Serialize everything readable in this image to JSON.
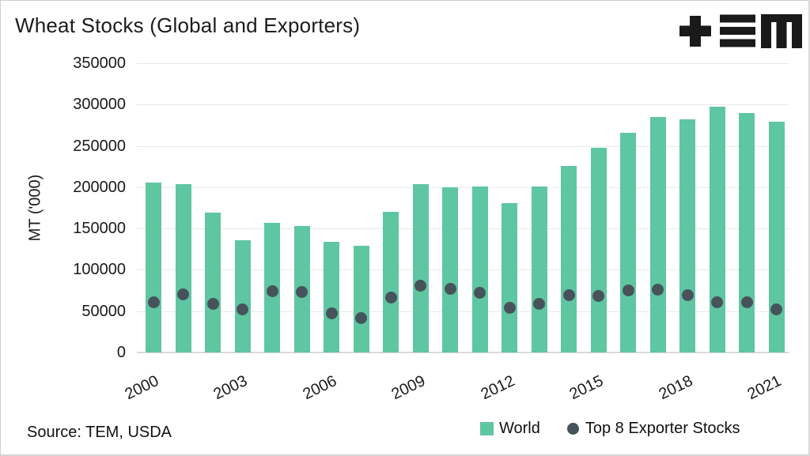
{
  "title": "Wheat Stocks (Global and Exporters)",
  "source_note": "Source: TEM, USDA",
  "logo_name": "tem-logo",
  "colors": {
    "bar": "#5fc6a2",
    "dot": "#47535a",
    "grid": "#e9e9e9",
    "baseline": "#dadada",
    "text": "#1a1a1a",
    "background": "#ffffff"
  },
  "chart_data": {
    "type": "bar",
    "title": "Wheat Stocks (Global and Exporters)",
    "xlabel": "",
    "ylabel": "MT ('000)",
    "ylim": [
      0,
      350000
    ],
    "ytick_step": 50000,
    "ytick_labels": [
      "0",
      "50000",
      "100000",
      "150000",
      "200000",
      "250000",
      "300000",
      "350000"
    ],
    "grid": true,
    "legend_position": "bottom-right",
    "categories": [
      2000,
      2001,
      2002,
      2003,
      2004,
      2005,
      2006,
      2007,
      2008,
      2009,
      2010,
      2011,
      2012,
      2013,
      2014,
      2015,
      2016,
      2017,
      2018,
      2019,
      2020,
      2021
    ],
    "xtick_labels": [
      "2000",
      "2003",
      "2006",
      "2009",
      "2012",
      "2015",
      "2018",
      "2021"
    ],
    "series": [
      {
        "name": "World",
        "type": "bar",
        "color": "#5fc6a2",
        "values": [
          206000,
          204000,
          169000,
          136000,
          157000,
          153000,
          134000,
          129000,
          170000,
          204000,
          200000,
          201000,
          181000,
          201000,
          226000,
          248000,
          266000,
          285000,
          282000,
          297000,
          290000,
          279000
        ]
      },
      {
        "name": "Top 8 Exporter Stocks",
        "type": "scatter",
        "color": "#47535a",
        "values": [
          61000,
          70000,
          59000,
          52000,
          74000,
          73000,
          47000,
          42000,
          66000,
          81000,
          77000,
          72000,
          54000,
          59000,
          69000,
          68000,
          75000,
          76000,
          69000,
          61000,
          61000,
          52000
        ]
      }
    ]
  }
}
